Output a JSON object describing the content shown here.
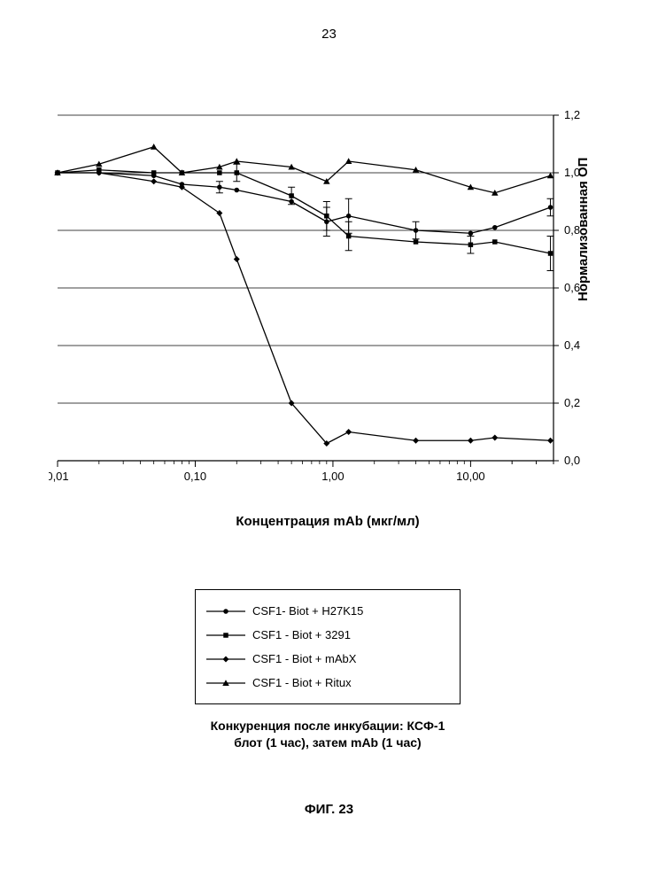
{
  "page_number": "23",
  "figure_label": "ФИГ. 23",
  "chart": {
    "type": "line",
    "xlabel": "Концентрация mAb (мкг/мл)",
    "ylabel": "Нормализованная ОП",
    "x_scale": "log",
    "xlim": [
      0.01,
      40.0
    ],
    "ylim": [
      0.0,
      1.2
    ],
    "ytick_step": 0.2,
    "x_ticks": [
      0.01,
      0.1,
      1.0,
      10.0
    ],
    "x_tick_labels": [
      "0,01",
      "0,10",
      "1,00",
      "10,00"
    ],
    "y_tick_labels": [
      "0,0",
      "0,2",
      "0,4",
      "0,6",
      "0,8",
      "1,0",
      "1,2"
    ],
    "background_color": "#ffffff",
    "axis_color": "#000000",
    "grid_color": "#000000",
    "grid_lw": 0.7,
    "line_lw": 1.3,
    "marker_size": 5,
    "errorbar_cap": 4,
    "label_fontsize": 15,
    "tick_fontsize": 13,
    "series": [
      {
        "name": "CSF1- Biot + H27K15",
        "marker": "circle",
        "color": "#000000",
        "x": [
          0.01,
          0.02,
          0.05,
          0.08,
          0.15,
          0.2,
          0.5,
          0.9,
          1.3,
          4.0,
          10.0,
          15.0,
          38.0
        ],
        "y": [
          1.0,
          1.0,
          0.99,
          0.96,
          0.95,
          0.94,
          0.9,
          0.83,
          0.85,
          0.8,
          0.79,
          0.81,
          0.88
        ],
        "yerr": [
          0.0,
          0.0,
          0.0,
          0.0,
          0.02,
          0.0,
          0.0,
          0.05,
          0.06,
          0.03,
          0.0,
          0.0,
          0.03
        ]
      },
      {
        "name": "CSF1 - Biot + 3291",
        "marker": "square",
        "color": "#000000",
        "x": [
          0.01,
          0.02,
          0.05,
          0.08,
          0.15,
          0.2,
          0.5,
          0.9,
          1.3,
          4.0,
          10.0,
          15.0,
          38.0
        ],
        "y": [
          1.0,
          1.01,
          1.0,
          1.0,
          1.0,
          1.0,
          0.92,
          0.85,
          0.78,
          0.76,
          0.75,
          0.76,
          0.72
        ],
        "yerr": [
          0.0,
          0.0,
          0.0,
          0.0,
          0.0,
          0.03,
          0.03,
          0.05,
          0.05,
          0.0,
          0.03,
          0.0,
          0.06
        ]
      },
      {
        "name": "CSF1 - Biot + mAbX",
        "marker": "diamond",
        "color": "#000000",
        "x": [
          0.01,
          0.02,
          0.05,
          0.08,
          0.15,
          0.2,
          0.5,
          0.9,
          1.3,
          4.0,
          10.0,
          15.0,
          38.0
        ],
        "y": [
          1.0,
          1.0,
          0.97,
          0.95,
          0.86,
          0.7,
          0.2,
          0.06,
          0.1,
          0.07,
          0.07,
          0.08,
          0.07
        ],
        "yerr": [
          0.0,
          0.0,
          0.0,
          0.0,
          0.0,
          0.0,
          0.0,
          0.0,
          0.0,
          0.0,
          0.0,
          0.0,
          0.0
        ]
      },
      {
        "name": "CSF1 - Biot + Ritux",
        "marker": "triangle",
        "color": "#000000",
        "x": [
          0.01,
          0.02,
          0.05,
          0.08,
          0.15,
          0.2,
          0.5,
          0.9,
          1.3,
          4.0,
          10.0,
          15.0,
          38.0
        ],
        "y": [
          1.0,
          1.03,
          1.09,
          1.0,
          1.02,
          1.04,
          1.02,
          0.97,
          1.04,
          1.01,
          0.95,
          0.93,
          0.99
        ],
        "yerr": [
          0.0,
          0.0,
          0.0,
          0.0,
          0.0,
          0.0,
          0.0,
          0.0,
          0.0,
          0.0,
          0.0,
          0.0,
          0.0
        ]
      }
    ]
  },
  "legend": {
    "items": [
      {
        "label": "CSF1- Biot + H27K15",
        "marker": "circle"
      },
      {
        "label": "CSF1 - Biot + 3291",
        "marker": "square"
      },
      {
        "label": "CSF1 - Biot + mAbX",
        "marker": "diamond"
      },
      {
        "label": "CSF1 - Biot + Ritux",
        "marker": "triangle"
      }
    ]
  },
  "caption_line1": "Конкуренция после инкубации: КСФ-1",
  "caption_line2": "блот (1 час), затем mAb (1 час)"
}
